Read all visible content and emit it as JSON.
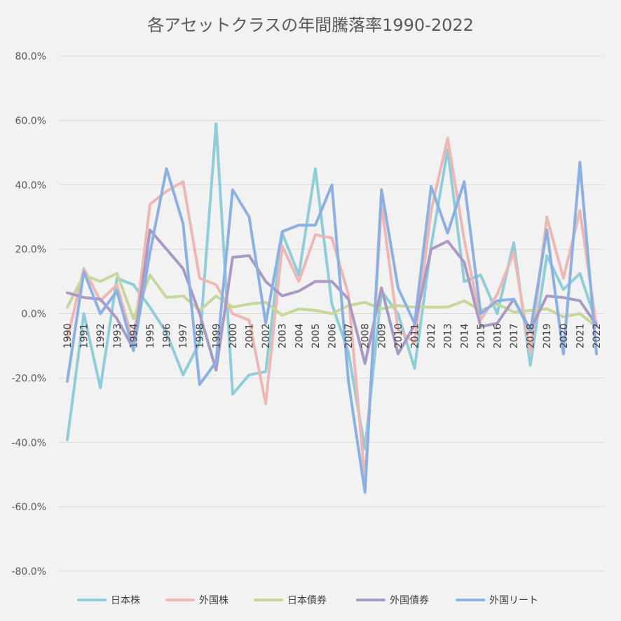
{
  "chart_data": {
    "type": "line",
    "title": "各アセットクラスの年間騰落率1990-2022",
    "xlabel": "",
    "ylabel": "",
    "ylim": [
      -0.8,
      0.8
    ],
    "y_ticks": [
      0.8,
      0.6,
      0.4,
      0.2,
      0.0,
      -0.2,
      -0.4,
      -0.6,
      -0.8
    ],
    "y_tick_labels": [
      "80.0%",
      "60.0%",
      "40.0%",
      "20.0%",
      "0.0%",
      "-20.0%",
      "-40.0%",
      "-60.0%",
      "-80.0%"
    ],
    "grid": true,
    "legend_position": "bottom",
    "categories": [
      "1990",
      "1991",
      "1992",
      "1993",
      "1994",
      "1995",
      "1996",
      "1997",
      "1998",
      "1999",
      "2000",
      "2001",
      "2002",
      "2003",
      "2004",
      "2005",
      "2006",
      "2007",
      "2008",
      "2009",
      "2010",
      "2011",
      "2012",
      "2013",
      "2014",
      "2015",
      "2016",
      "2017",
      "2018",
      "2019",
      "2020",
      "2021",
      "2022"
    ],
    "series": [
      {
        "name": "日本株",
        "color": "#8fcdd8",
        "values": [
          -0.392,
          0.0,
          -0.23,
          0.11,
          0.09,
          0.02,
          -0.06,
          -0.19,
          -0.09,
          0.59,
          -0.25,
          -0.19,
          -0.18,
          0.25,
          0.12,
          0.45,
          0.03,
          -0.12,
          -0.42,
          0.07,
          0.0,
          -0.17,
          0.21,
          0.51,
          0.1,
          0.12,
          0.0,
          0.22,
          -0.16,
          0.18,
          0.075,
          0.125,
          -0.03
        ]
      },
      {
        "name": "外国株",
        "color": "#edb8b4",
        "values": [
          -0.08,
          0.14,
          0.04,
          0.09,
          -0.09,
          0.34,
          0.38,
          0.41,
          0.11,
          0.09,
          0.0,
          -0.02,
          -0.28,
          0.21,
          0.1,
          0.245,
          0.235,
          0.06,
          -0.52,
          0.34,
          -0.05,
          -0.09,
          0.32,
          0.545,
          0.23,
          -0.02,
          0.06,
          0.19,
          -0.12,
          0.3,
          0.11,
          0.32,
          -0.04
        ]
      },
      {
        "name": "日本債券",
        "color": "#c4d89a",
        "values": [
          0.02,
          0.12,
          0.1,
          0.125,
          -0.015,
          0.12,
          0.05,
          0.055,
          0.01,
          0.055,
          0.02,
          0.03,
          0.035,
          -0.005,
          0.015,
          0.01,
          0.0,
          0.025,
          0.035,
          0.015,
          0.025,
          0.02,
          0.02,
          0.02,
          0.04,
          0.01,
          0.03,
          0.005,
          0.01,
          0.015,
          -0.01,
          0.0,
          -0.04
        ]
      },
      {
        "name": "外国債券",
        "color": "#aa98c5",
        "values": [
          0.065,
          0.05,
          0.045,
          -0.015,
          -0.11,
          0.26,
          0.2,
          0.14,
          0.0,
          -0.175,
          0.175,
          0.18,
          0.1,
          0.055,
          0.07,
          0.1,
          0.1,
          0.045,
          -0.155,
          0.08,
          -0.125,
          -0.035,
          0.2,
          0.225,
          0.16,
          -0.04,
          -0.03,
          0.045,
          -0.05,
          0.055,
          0.05,
          0.04,
          -0.035
        ]
      },
      {
        "name": "外国リート",
        "color": "#8db0e3",
        "values": [
          -0.21,
          0.13,
          0.0,
          0.07,
          -0.115,
          0.19,
          0.45,
          0.28,
          -0.22,
          -0.15,
          0.385,
          0.3,
          -0.03,
          0.255,
          0.275,
          0.275,
          0.4,
          -0.21,
          -0.555,
          0.385,
          0.08,
          -0.03,
          0.395,
          0.25,
          0.41,
          0.0,
          0.04,
          0.045,
          -0.055,
          0.26,
          -0.125,
          0.47,
          -0.125
        ]
      }
    ]
  }
}
